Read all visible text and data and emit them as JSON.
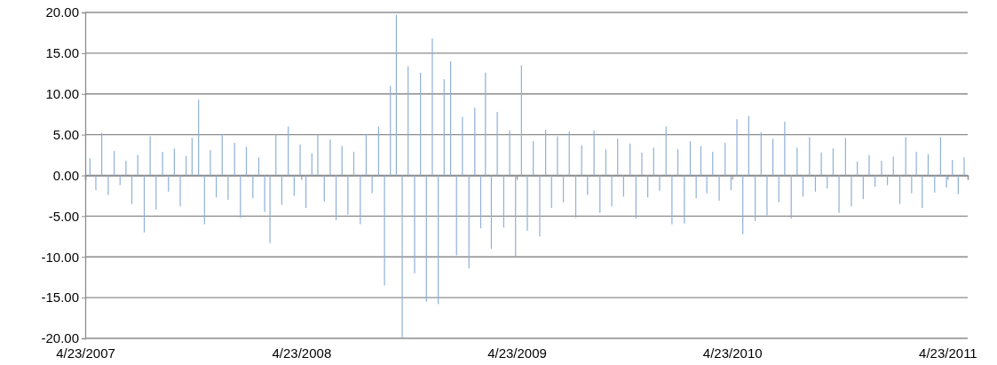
{
  "chart_data": {
    "type": "bar",
    "color": "#8fb0d8",
    "xlim": [
      "2007-04-23",
      "2011-05-27"
    ],
    "xticks": [
      {
        "value": "2007-04-23",
        "label": "4/23/2007"
      },
      {
        "value": "2008-04-23",
        "label": "4/23/2008"
      },
      {
        "value": "2009-04-23",
        "label": "4/23/2009"
      },
      {
        "value": "2010-04-23",
        "label": "4/23/2010"
      },
      {
        "value": "2011-04-23",
        "label": "4/23/2011"
      }
    ],
    "ylim": [
      -20,
      20
    ],
    "yticks": [
      {
        "value": -20,
        "label": "-20.00"
      },
      {
        "value": -15,
        "label": "-15.00"
      },
      {
        "value": -10,
        "label": "-10.00"
      },
      {
        "value": -5,
        "label": "-5.00"
      },
      {
        "value": 0,
        "label": "0.00"
      },
      {
        "value": 5,
        "label": "5.00"
      },
      {
        "value": 10,
        "label": "10.00"
      },
      {
        "value": 15,
        "label": "15.00"
      },
      {
        "value": 20,
        "label": "20.00"
      }
    ],
    "grid": "y",
    "x": [
      "2007-05-01",
      "2007-05-11",
      "2007-05-21",
      "2007-06-01",
      "2007-06-11",
      "2007-06-21",
      "2007-07-01",
      "2007-07-11",
      "2007-07-21",
      "2007-08-01",
      "2007-08-11",
      "2007-08-21",
      "2007-09-01",
      "2007-09-11",
      "2007-09-21",
      "2007-10-01",
      "2007-10-11",
      "2007-10-21",
      "2007-11-01",
      "2007-11-11",
      "2007-11-21",
      "2007-12-01",
      "2007-12-11",
      "2007-12-21",
      "2008-01-01",
      "2008-01-11",
      "2008-01-21",
      "2008-02-01",
      "2008-02-11",
      "2008-02-21",
      "2008-03-01",
      "2008-03-11",
      "2008-03-21",
      "2008-04-01",
      "2008-04-11",
      "2008-04-21",
      "2008-05-01",
      "2008-05-11",
      "2008-05-21",
      "2008-06-01",
      "2008-06-11",
      "2008-06-21",
      "2008-07-01",
      "2008-07-11",
      "2008-07-21",
      "2008-08-01",
      "2008-08-11",
      "2008-08-21",
      "2008-09-01",
      "2008-09-11",
      "2008-09-21",
      "2008-10-01",
      "2008-10-11",
      "2008-10-21",
      "2008-11-01",
      "2008-11-11",
      "2008-11-21",
      "2008-12-01",
      "2008-12-11",
      "2008-12-21",
      "2009-01-01",
      "2009-01-11",
      "2009-01-21",
      "2009-02-01",
      "2009-02-11",
      "2009-02-21",
      "2009-03-01",
      "2009-03-11",
      "2009-03-21",
      "2009-04-01",
      "2009-04-11",
      "2009-04-21",
      "2009-05-01",
      "2009-05-11",
      "2009-05-21",
      "2009-06-01",
      "2009-06-11",
      "2009-06-21",
      "2009-07-01",
      "2009-07-11",
      "2009-07-21",
      "2009-08-01",
      "2009-08-11",
      "2009-08-21",
      "2009-09-01",
      "2009-09-11",
      "2009-09-21",
      "2009-10-01",
      "2009-10-11",
      "2009-10-21",
      "2009-11-01",
      "2009-11-11",
      "2009-11-21",
      "2009-12-01",
      "2009-12-11",
      "2009-12-21",
      "2010-01-01",
      "2010-01-11",
      "2010-01-21",
      "2010-02-01",
      "2010-02-11",
      "2010-02-21",
      "2010-03-01",
      "2010-03-11",
      "2010-03-21",
      "2010-04-01",
      "2010-04-11",
      "2010-04-21",
      "2010-05-01",
      "2010-05-11",
      "2010-05-21",
      "2010-06-01",
      "2010-06-11",
      "2010-06-21",
      "2010-07-01",
      "2010-07-11",
      "2010-07-21",
      "2010-08-01",
      "2010-08-11",
      "2010-08-21",
      "2010-09-01",
      "2010-09-11",
      "2010-09-21",
      "2010-10-01",
      "2010-10-11",
      "2010-10-21",
      "2010-11-01",
      "2010-11-11",
      "2010-11-21",
      "2010-12-01",
      "2010-12-11",
      "2010-12-21",
      "2011-01-01",
      "2011-01-11",
      "2011-01-21",
      "2011-02-01",
      "2011-02-11",
      "2011-02-21",
      "2011-03-01",
      "2011-03-11",
      "2011-03-21",
      "2011-04-01",
      "2011-04-11",
      "2011-04-21",
      "2011-05-01",
      "2011-05-11",
      "2011-05-21"
    ],
    "values": [
      2.1,
      -1.8,
      5.2,
      -2.4,
      3.0,
      -1.2,
      1.8,
      -3.5,
      2.5,
      -7.0,
      4.8,
      -4.2,
      2.9,
      -2.0,
      3.3,
      -3.8,
      2.4,
      4.6,
      9.3,
      -6.0,
      3.1,
      -2.7,
      5.1,
      -3.0,
      4.0,
      -5.2,
      3.5,
      -2.8,
      2.2,
      -4.5,
      -8.3,
      5.0,
      -3.6,
      6.0,
      -2.5,
      3.8,
      -4.0,
      2.7,
      5.0,
      -3.2,
      4.4,
      -5.5,
      3.6,
      -4.8,
      2.9,
      -6.0,
      5.1,
      -2.2,
      6.0,
      -13.5,
      11.0,
      19.7,
      -20.0,
      13.4,
      -12.0,
      12.6,
      -15.5,
      16.8,
      -15.8,
      11.8,
      14.0,
      -9.8,
      7.2,
      -11.4,
      8.3,
      -6.5,
      12.6,
      -9.0,
      7.8,
      -6.4,
      5.5,
      -10.0,
      13.5,
      -6.8,
      4.2,
      -7.5,
      5.6,
      -4.0,
      4.8,
      -3.3,
      5.4,
      -5.2,
      3.7,
      -2.4,
      5.5,
      -4.6,
      3.2,
      -3.8,
      4.5,
      -2.6,
      3.9,
      -5.3,
      2.8,
      -2.7,
      3.4,
      -1.9,
      6.0,
      -6.0,
      3.2,
      -5.9,
      4.2,
      -2.8,
      3.6,
      -2.2,
      2.9,
      -3.1,
      4.0,
      -1.8,
      6.9,
      -7.2,
      7.3,
      -5.6,
      5.3,
      -4.9,
      4.5,
      -3.3,
      6.6,
      -5.3,
      3.4,
      -2.6,
      4.7,
      -2.0,
      2.8,
      -1.6,
      3.3,
      -4.6,
      4.6,
      -3.8,
      1.7,
      -2.9,
      2.5,
      -1.4,
      1.8,
      -1.2,
      2.3,
      -3.5,
      4.7,
      -2.2,
      2.9,
      -4.0,
      2.6,
      -2.1,
      4.7,
      -1.5,
      1.9,
      -2.3,
      2.2
    ]
  }
}
